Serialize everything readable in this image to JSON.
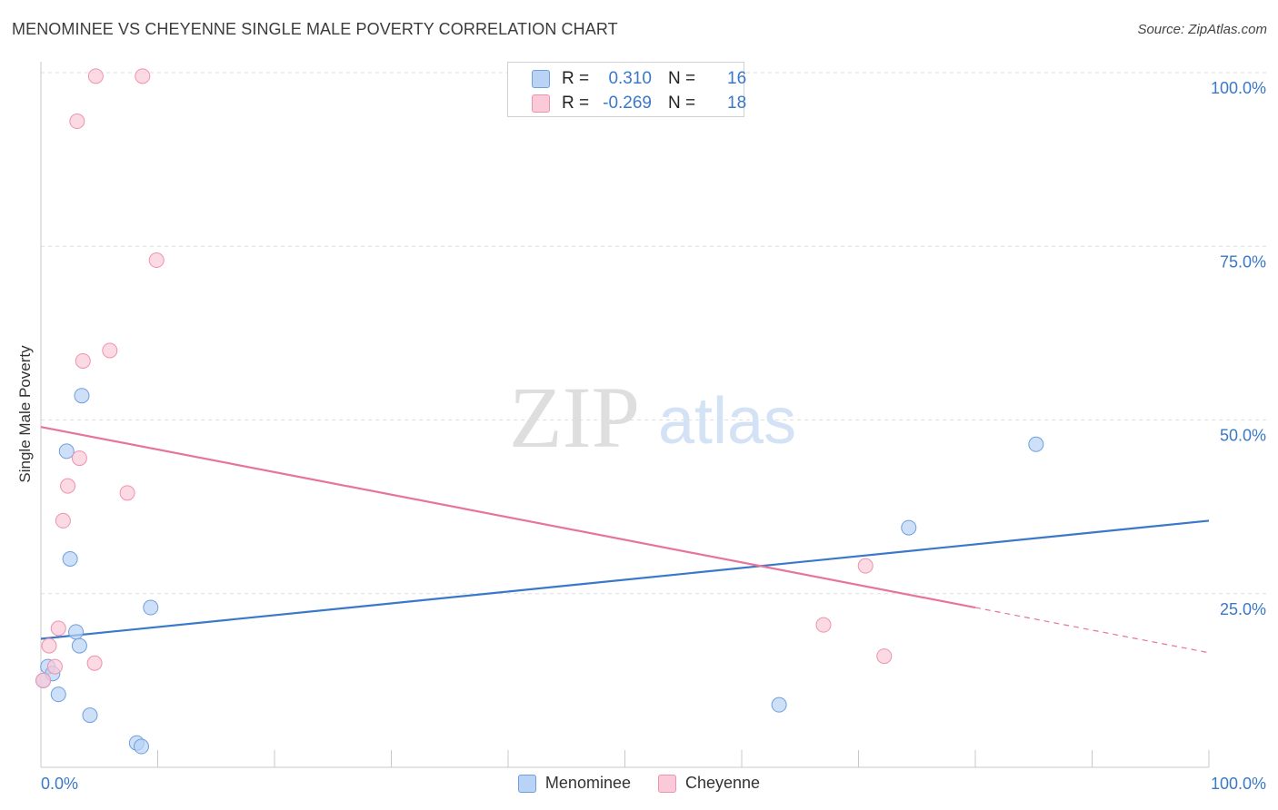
{
  "title": "MENOMINEE VS CHEYENNE SINGLE MALE POVERTY CORRELATION CHART",
  "source": "Source: ZipAtlas.com",
  "watermark": {
    "zip": "ZIP",
    "atlas": "atlas"
  },
  "legend": {
    "items": [
      {
        "name": "Menominee",
        "r_label": "R =",
        "r_value": "0.310",
        "n_label": "N =",
        "n_value": "16"
      },
      {
        "name": "Cheyenne",
        "r_label": "R =",
        "r_value": "-0.269",
        "n_label": "N =",
        "n_value": "18"
      }
    ]
  },
  "chart_data": {
    "type": "scatter",
    "title": "MENOMINEE VS CHEYENNE SINGLE MALE POVERTY CORRELATION CHART",
    "xlabel": "",
    "ylabel": "Single Male Poverty",
    "xlim": [
      0,
      100
    ],
    "ylim": [
      0,
      100
    ],
    "x_tick_labels": [
      "0.0%",
      "100.0%"
    ],
    "y_tick_values": [
      25,
      50,
      75,
      100
    ],
    "y_tick_labels": [
      "25.0%",
      "50.0%",
      "75.0%",
      "100.0%"
    ],
    "colors": {
      "Menominee": "#3a78c9",
      "Cheyenne": "#e8739b"
    },
    "series": [
      {
        "name": "Menominee",
        "color": "#3a78c9",
        "points": [
          {
            "x": 0.2,
            "y": 12.5
          },
          {
            "x": 0.6,
            "y": 14.5
          },
          {
            "x": 1.0,
            "y": 13.5
          },
          {
            "x": 1.5,
            "y": 10.5
          },
          {
            "x": 2.2,
            "y": 45.5
          },
          {
            "x": 2.5,
            "y": 30.0
          },
          {
            "x": 3.0,
            "y": 19.5
          },
          {
            "x": 3.3,
            "y": 17.5
          },
          {
            "x": 3.5,
            "y": 53.5
          },
          {
            "x": 4.2,
            "y": 7.5
          },
          {
            "x": 8.2,
            "y": 3.5
          },
          {
            "x": 8.6,
            "y": 3.0
          },
          {
            "x": 9.4,
            "y": 23.0
          },
          {
            "x": 63.2,
            "y": 9.0
          },
          {
            "x": 74.3,
            "y": 34.5
          },
          {
            "x": 85.2,
            "y": 46.5
          }
        ],
        "trend": {
          "x": [
            0,
            100
          ],
          "y": [
            18.5,
            35.5
          ],
          "style": "solid"
        }
      },
      {
        "name": "Cheyenne",
        "color": "#e8739b",
        "points": [
          {
            "x": 0.2,
            "y": 12.5
          },
          {
            "x": 0.7,
            "y": 17.5
          },
          {
            "x": 1.2,
            "y": 14.5
          },
          {
            "x": 1.5,
            "y": 20.0
          },
          {
            "x": 1.9,
            "y": 35.5
          },
          {
            "x": 2.3,
            "y": 40.5
          },
          {
            "x": 3.1,
            "y": 93.0
          },
          {
            "x": 3.3,
            "y": 44.5
          },
          {
            "x": 3.6,
            "y": 58.5
          },
          {
            "x": 4.6,
            "y": 15.0
          },
          {
            "x": 4.7,
            "y": 99.5
          },
          {
            "x": 5.9,
            "y": 60.0
          },
          {
            "x": 7.4,
            "y": 39.5
          },
          {
            "x": 8.7,
            "y": 99.5
          },
          {
            "x": 9.9,
            "y": 73.0
          },
          {
            "x": 67.0,
            "y": 20.5
          },
          {
            "x": 70.6,
            "y": 29.0
          },
          {
            "x": 72.2,
            "y": 16.0
          }
        ],
        "trend": {
          "x": [
            0,
            80
          ],
          "y": [
            49.0,
            23.0
          ],
          "style": "solid",
          "dashed_extension": {
            "x": [
              80,
              100
            ],
            "y": [
              23.0,
              16.5
            ]
          }
        }
      }
    ]
  }
}
